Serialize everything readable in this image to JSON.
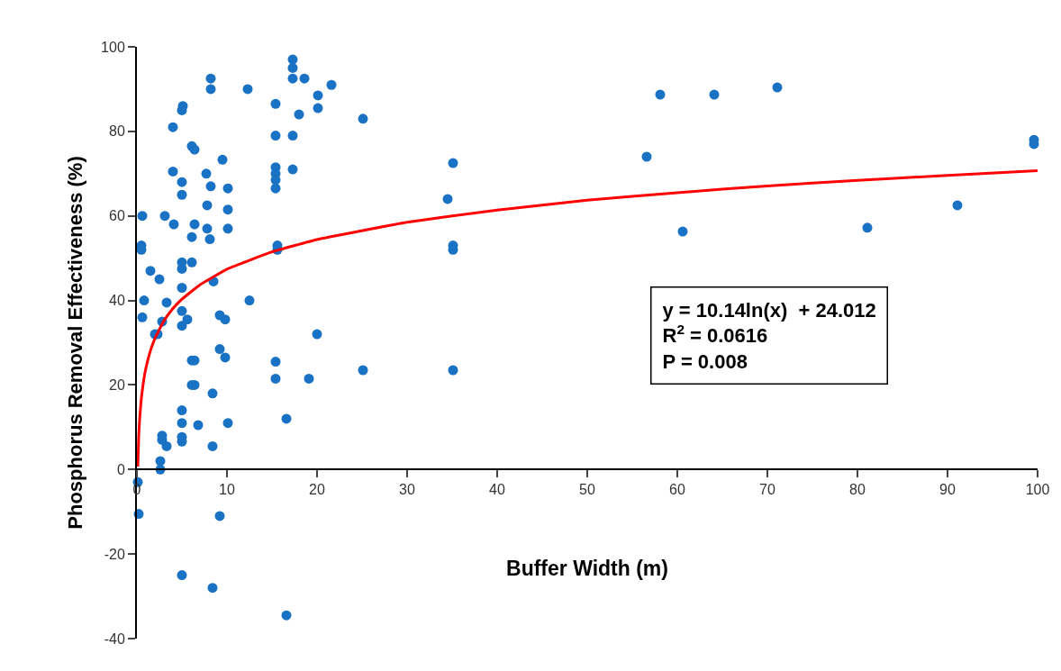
{
  "chart_data": {
    "type": "scatter",
    "xlabel": "Buffer Width (m)",
    "ylabel": "Phosphorus Removal Effectiveness (%)",
    "xlim": [
      0,
      100
    ],
    "xticks": [
      0,
      10,
      20,
      30,
      40,
      50,
      60,
      70,
      80,
      90,
      100
    ],
    "ylim": [
      -40,
      100
    ],
    "yticks": [
      -40,
      -20,
      0,
      20,
      40,
      60,
      80,
      100
    ],
    "grid": false,
    "marker": "circle",
    "annotations": [
      "y = 10.14ln(x)  + 24.012",
      "R$^{2}$ = 0.0616",
      "P = 0.008"
    ],
    "series": [
      {
        "color": "#1a72c4",
        "x": [
          0.6,
          0.5,
          0.5,
          0.8,
          0.6,
          0.1,
          0.2,
          1.5,
          2.5,
          2,
          2.3,
          2.8,
          3.3,
          3.1,
          4,
          4,
          4.1,
          2.8,
          2.8,
          3.3,
          2.6,
          2.6,
          5.1,
          5,
          5,
          5,
          5,
          5,
          5,
          5,
          5,
          5.6,
          5,
          5,
          5,
          5,
          5,
          6.1,
          6.4,
          6.1,
          6.4,
          6.1,
          6.1,
          6.4,
          6.1,
          6.4,
          6.8,
          7.7,
          7.8,
          7.8,
          8.1,
          8.2,
          8.2,
          8.2,
          8.5,
          8.4,
          8.4,
          8.4,
          9.5,
          9.2,
          9.8,
          9.2,
          9.8,
          9.2,
          10.1,
          10.1,
          10.1,
          10.1,
          12.3,
          12.5,
          15.4,
          15.4,
          15.4,
          15.4,
          15.4,
          15.4,
          15.6,
          15.6,
          15.4,
          15.4,
          16.6,
          16.6,
          17.3,
          17.3,
          17.3,
          17.3,
          17.3,
          18,
          18.6,
          19.1,
          20.1,
          20.1,
          20,
          21.6,
          25.1,
          25.1,
          34.5,
          35.1,
          35.1,
          35.1,
          35.1,
          56.6,
          58.1,
          60.6,
          64.1,
          71.1,
          81.1,
          91.1,
          99.6,
          99.6
        ],
        "values": [
          60,
          53,
          52,
          40,
          36,
          -3,
          -10.5,
          47,
          45,
          32,
          32,
          35,
          39.5,
          60,
          81,
          70.5,
          58,
          8,
          7,
          5.5,
          2,
          0,
          86,
          85,
          68,
          65,
          49,
          47.5,
          43,
          37.5,
          34,
          35.5,
          14,
          11,
          7.7,
          6.6,
          -25,
          76.5,
          75.7,
          55,
          58,
          49,
          25.8,
          25.8,
          20,
          20,
          10.5,
          70,
          62.5,
          57,
          54.5,
          92.5,
          90,
          67,
          44.5,
          18,
          5.5,
          -28,
          73.3,
          36.5,
          35.5,
          28.5,
          26.5,
          -11,
          66.5,
          61.5,
          57,
          11,
          90,
          40,
          86.5,
          79,
          71.5,
          70,
          68.5,
          66.5,
          53,
          52,
          25.5,
          21.5,
          12,
          -34.5,
          97,
          95,
          92.5,
          79,
          71,
          84,
          92.5,
          21.5,
          88.5,
          85.5,
          32,
          91,
          83,
          23.5,
          64,
          72.5,
          53,
          52,
          23.5,
          74,
          88.7,
          56.3,
          88.7,
          90.4,
          57.2,
          62.5,
          78,
          77
        ]
      },
      {
        "type": "line",
        "color": "#ff0000",
        "line_style": "solid",
        "marker": "none",
        "x": [
          0.1,
          0.2,
          0.3,
          0.5,
          0.75,
          1,
          1.5,
          2,
          3,
          4,
          5,
          7,
          10,
          15,
          20,
          30,
          40,
          50,
          60,
          70,
          80,
          90,
          100
        ],
        "values": [
          0.7,
          7.7,
          11.8,
          17,
          21.1,
          24,
          28.1,
          31,
          35.2,
          38.1,
          40.3,
          43.7,
          47.4,
          51.5,
          54.4,
          58.5,
          61.4,
          63.7,
          65.5,
          67.1,
          68.4,
          69.6,
          70.7
        ]
      }
    ]
  }
}
